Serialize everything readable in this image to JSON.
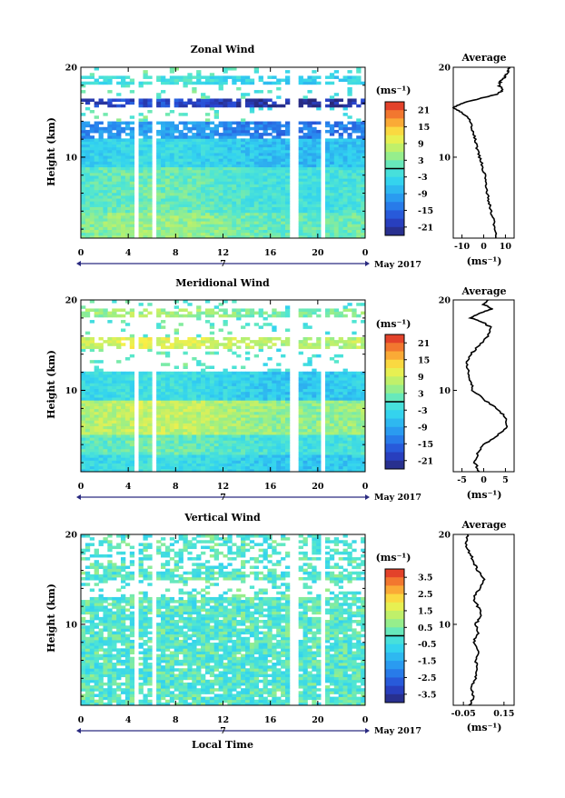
{
  "figure": {
    "xlabel": "Local Time",
    "month_label": "May 2017",
    "day_label": "7",
    "height_label": "Height (km)",
    "unit_label": "(ms⁻¹)",
    "x_ticks": [
      "0",
      "4",
      "8",
      "12",
      "16",
      "20",
      "0"
    ],
    "y_ticks": [
      "10",
      "20"
    ],
    "avg_title": "Average"
  },
  "chart_data": [
    {
      "type": "heatmap",
      "title": "Zonal Wind",
      "xlabel": "Local Time",
      "ylabel": "Height (km)",
      "xlim": [
        0,
        24
      ],
      "ylim": [
        1,
        20
      ],
      "colorbar": {
        "label": "(ms⁻¹)",
        "ticks": [
          "21",
          "15",
          "9",
          "3",
          "-3",
          "-9",
          "-15",
          "-21"
        ],
        "range": [
          -24,
          24
        ]
      },
      "data_gaps_hours": [
        [
          4.5,
          5.0
        ],
        [
          5.9,
          6.2
        ],
        [
          17.8,
          18.3
        ],
        [
          20.2,
          20.8
        ]
      ],
      "profile_layers": [
        {
          "height_km": [
            1,
            4
          ],
          "speed_ms": 3
        },
        {
          "height_km": [
            4,
            9
          ],
          "speed_ms": 0
        },
        {
          "height_km": [
            9,
            12
          ],
          "speed_ms": -5
        },
        {
          "height_km": [
            12,
            14
          ],
          "speed_ms": -12
        },
        {
          "height_km": [
            15.5,
            16.5
          ],
          "speed_ms": -20
        },
        {
          "height_km": [
            18,
            19
          ],
          "speed_ms": -3
        }
      ],
      "average_profile": {
        "title": "Average",
        "xlabel": "(ms⁻¹)",
        "x_ticks": [
          "-10",
          "0",
          "10"
        ],
        "xlim": [
          -14,
          14
        ],
        "height_km": [
          1,
          2,
          3,
          4,
          5,
          6,
          7,
          8,
          9,
          10,
          11,
          12,
          13,
          14,
          15,
          15.5,
          16,
          16.5,
          17,
          17.5,
          18,
          18.5,
          19,
          19.5,
          20
        ],
        "speed_ms": [
          6,
          5.5,
          4.5,
          3.5,
          2.5,
          1.5,
          1,
          0.5,
          -0.5,
          -2,
          -3,
          -4,
          -5,
          -6,
          -10,
          -14,
          -10,
          -2,
          6,
          9,
          7,
          8,
          10,
          11,
          12
        ]
      }
    },
    {
      "type": "heatmap",
      "title": "Meridional Wind",
      "xlabel": "Local Time",
      "ylabel": "Height (km)",
      "xlim": [
        0,
        24
      ],
      "ylim": [
        1,
        20
      ],
      "colorbar": {
        "label": "(ms⁻¹)",
        "ticks": [
          "21",
          "15",
          "9",
          "3",
          "-3",
          "-9",
          "-15",
          "-21"
        ],
        "range": [
          -24,
          24
        ]
      },
      "data_gaps_hours": [
        [
          4.5,
          5.0
        ],
        [
          5.9,
          6.2
        ],
        [
          17.8,
          18.3
        ],
        [
          20.2,
          20.8
        ]
      ],
      "profile_layers": [
        {
          "height_km": [
            1,
            3
          ],
          "speed_ms": -4
        },
        {
          "height_km": [
            3,
            5
          ],
          "speed_ms": 0
        },
        {
          "height_km": [
            5,
            9
          ],
          "speed_ms": 6
        },
        {
          "height_km": [
            9,
            12
          ],
          "speed_ms": -4
        },
        {
          "height_km": [
            14.5,
            16
          ],
          "speed_ms": 8
        },
        {
          "height_km": [
            18,
            19
          ],
          "speed_ms": 4
        }
      ],
      "average_profile": {
        "title": "Average",
        "xlabel": "(ms⁻¹)",
        "x_ticks": [
          "-5",
          "0",
          "5"
        ],
        "xlim": [
          -7,
          7
        ],
        "height_km": [
          1,
          2,
          3,
          4,
          5,
          6,
          7,
          8,
          9,
          10,
          11,
          12,
          13,
          14,
          15,
          16,
          17,
          17.5,
          18,
          18.5,
          19,
          19.5,
          20
        ],
        "speed_ms": [
          -1,
          -2,
          -1.5,
          0,
          3,
          5.5,
          5,
          3,
          0,
          -2.5,
          -3,
          -3.5,
          -4,
          -3,
          -1,
          1,
          1.5,
          0,
          -3,
          -1,
          2,
          0,
          1
        ]
      }
    },
    {
      "type": "heatmap",
      "title": "Vertical Wind",
      "xlabel": "Local Time",
      "ylabel": "Height (km)",
      "xlim": [
        0,
        24
      ],
      "ylim": [
        1,
        20
      ],
      "colorbar": {
        "label": "(ms⁻¹)",
        "ticks": [
          "3.5",
          "2.5",
          "1.5",
          "0.5",
          "-0.5",
          "-1.5",
          "-2.5",
          "-3.5"
        ],
        "range": [
          -4,
          4
        ]
      },
      "data_gaps_hours": [
        [
          4.5,
          5.0
        ],
        [
          5.9,
          6.2
        ],
        [
          17.8,
          18.3
        ],
        [
          20.2,
          20.8
        ]
      ],
      "profile_layers": [
        {
          "height_km": [
            1,
            20
          ],
          "speed_ms": 0
        }
      ],
      "average_profile": {
        "title": "Average",
        "xlabel": "(ms⁻¹)",
        "x_ticks": [
          "-0.05",
          "0.15"
        ],
        "xlim": [
          -0.1,
          0.2
        ],
        "height_km": [
          1,
          2,
          3,
          4,
          5,
          6,
          7,
          8,
          9,
          10,
          11,
          12,
          13,
          14,
          15,
          16,
          17,
          18,
          19,
          20
        ],
        "speed_ms": [
          -0.02,
          0,
          -0.01,
          0.01,
          0.02,
          0.01,
          0.03,
          0.0,
          0.02,
          0.01,
          0.04,
          0.02,
          0.0,
          0.03,
          0.05,
          0.02,
          0.0,
          -0.02,
          -0.04,
          -0.03
        ]
      }
    }
  ]
}
